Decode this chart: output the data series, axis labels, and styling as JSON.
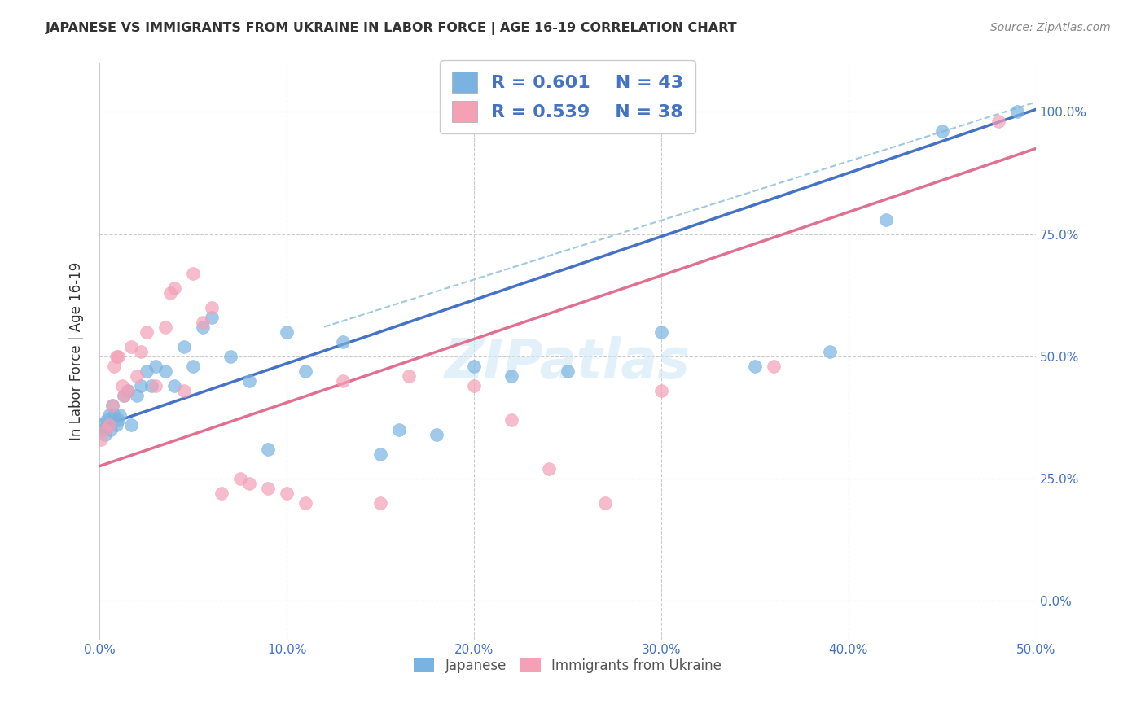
{
  "title": "JAPANESE VS IMMIGRANTS FROM UKRAINE IN LABOR FORCE | AGE 16-19 CORRELATION CHART",
  "source": "Source: ZipAtlas.com",
  "ylabel": "In Labor Force | Age 16-19",
  "xlim": [
    0.0,
    0.5
  ],
  "ylim": [
    -0.08,
    1.1
  ],
  "background_color": "#ffffff",
  "grid_color": "#cccccc",
  "title_color": "#333333",
  "blue_color": "#7ab3e0",
  "pink_color": "#f4a0b5",
  "blue_line_color": "#4472c4",
  "pink_line_color": "#e07090",
  "dashed_line_color": "#a0c8e0",
  "legend_text_color": "#4472c4",
  "tick_color": "#4472c4",
  "r_blue": "0.601",
  "n_blue": "43",
  "r_pink": "0.539",
  "n_pink": "38",
  "japanese_x": [
    0.001,
    0.002,
    0.003,
    0.004,
    0.005,
    0.006,
    0.007,
    0.008,
    0.009,
    0.01,
    0.011,
    0.013,
    0.015,
    0.017,
    0.02,
    0.022,
    0.025,
    0.028,
    0.03,
    0.035,
    0.04,
    0.045,
    0.05,
    0.055,
    0.06,
    0.07,
    0.08,
    0.09,
    0.1,
    0.11,
    0.13,
    0.15,
    0.16,
    0.18,
    0.2,
    0.22,
    0.25,
    0.3,
    0.35,
    0.39,
    0.42,
    0.45,
    0.49
  ],
  "japanese_y": [
    0.36,
    0.35,
    0.34,
    0.37,
    0.38,
    0.35,
    0.4,
    0.38,
    0.36,
    0.37,
    0.38,
    0.42,
    0.43,
    0.36,
    0.42,
    0.44,
    0.47,
    0.44,
    0.48,
    0.47,
    0.44,
    0.52,
    0.48,
    0.56,
    0.58,
    0.5,
    0.45,
    0.31,
    0.55,
    0.47,
    0.53,
    0.3,
    0.35,
    0.34,
    0.48,
    0.46,
    0.47,
    0.55,
    0.48,
    0.51,
    0.78,
    0.96,
    1.0
  ],
  "ukraine_x": [
    0.001,
    0.003,
    0.005,
    0.007,
    0.008,
    0.009,
    0.01,
    0.012,
    0.013,
    0.015,
    0.017,
    0.02,
    0.022,
    0.025,
    0.03,
    0.035,
    0.038,
    0.04,
    0.045,
    0.05,
    0.055,
    0.06,
    0.065,
    0.075,
    0.08,
    0.09,
    0.1,
    0.11,
    0.13,
    0.15,
    0.165,
    0.2,
    0.22,
    0.24,
    0.27,
    0.3,
    0.36,
    0.48
  ],
  "ukraine_y": [
    0.33,
    0.35,
    0.36,
    0.4,
    0.48,
    0.5,
    0.5,
    0.44,
    0.42,
    0.43,
    0.52,
    0.46,
    0.51,
    0.55,
    0.44,
    0.56,
    0.63,
    0.64,
    0.43,
    0.67,
    0.57,
    0.6,
    0.22,
    0.25,
    0.24,
    0.23,
    0.22,
    0.2,
    0.45,
    0.2,
    0.46,
    0.44,
    0.37,
    0.27,
    0.2,
    0.43,
    0.48,
    0.98
  ]
}
